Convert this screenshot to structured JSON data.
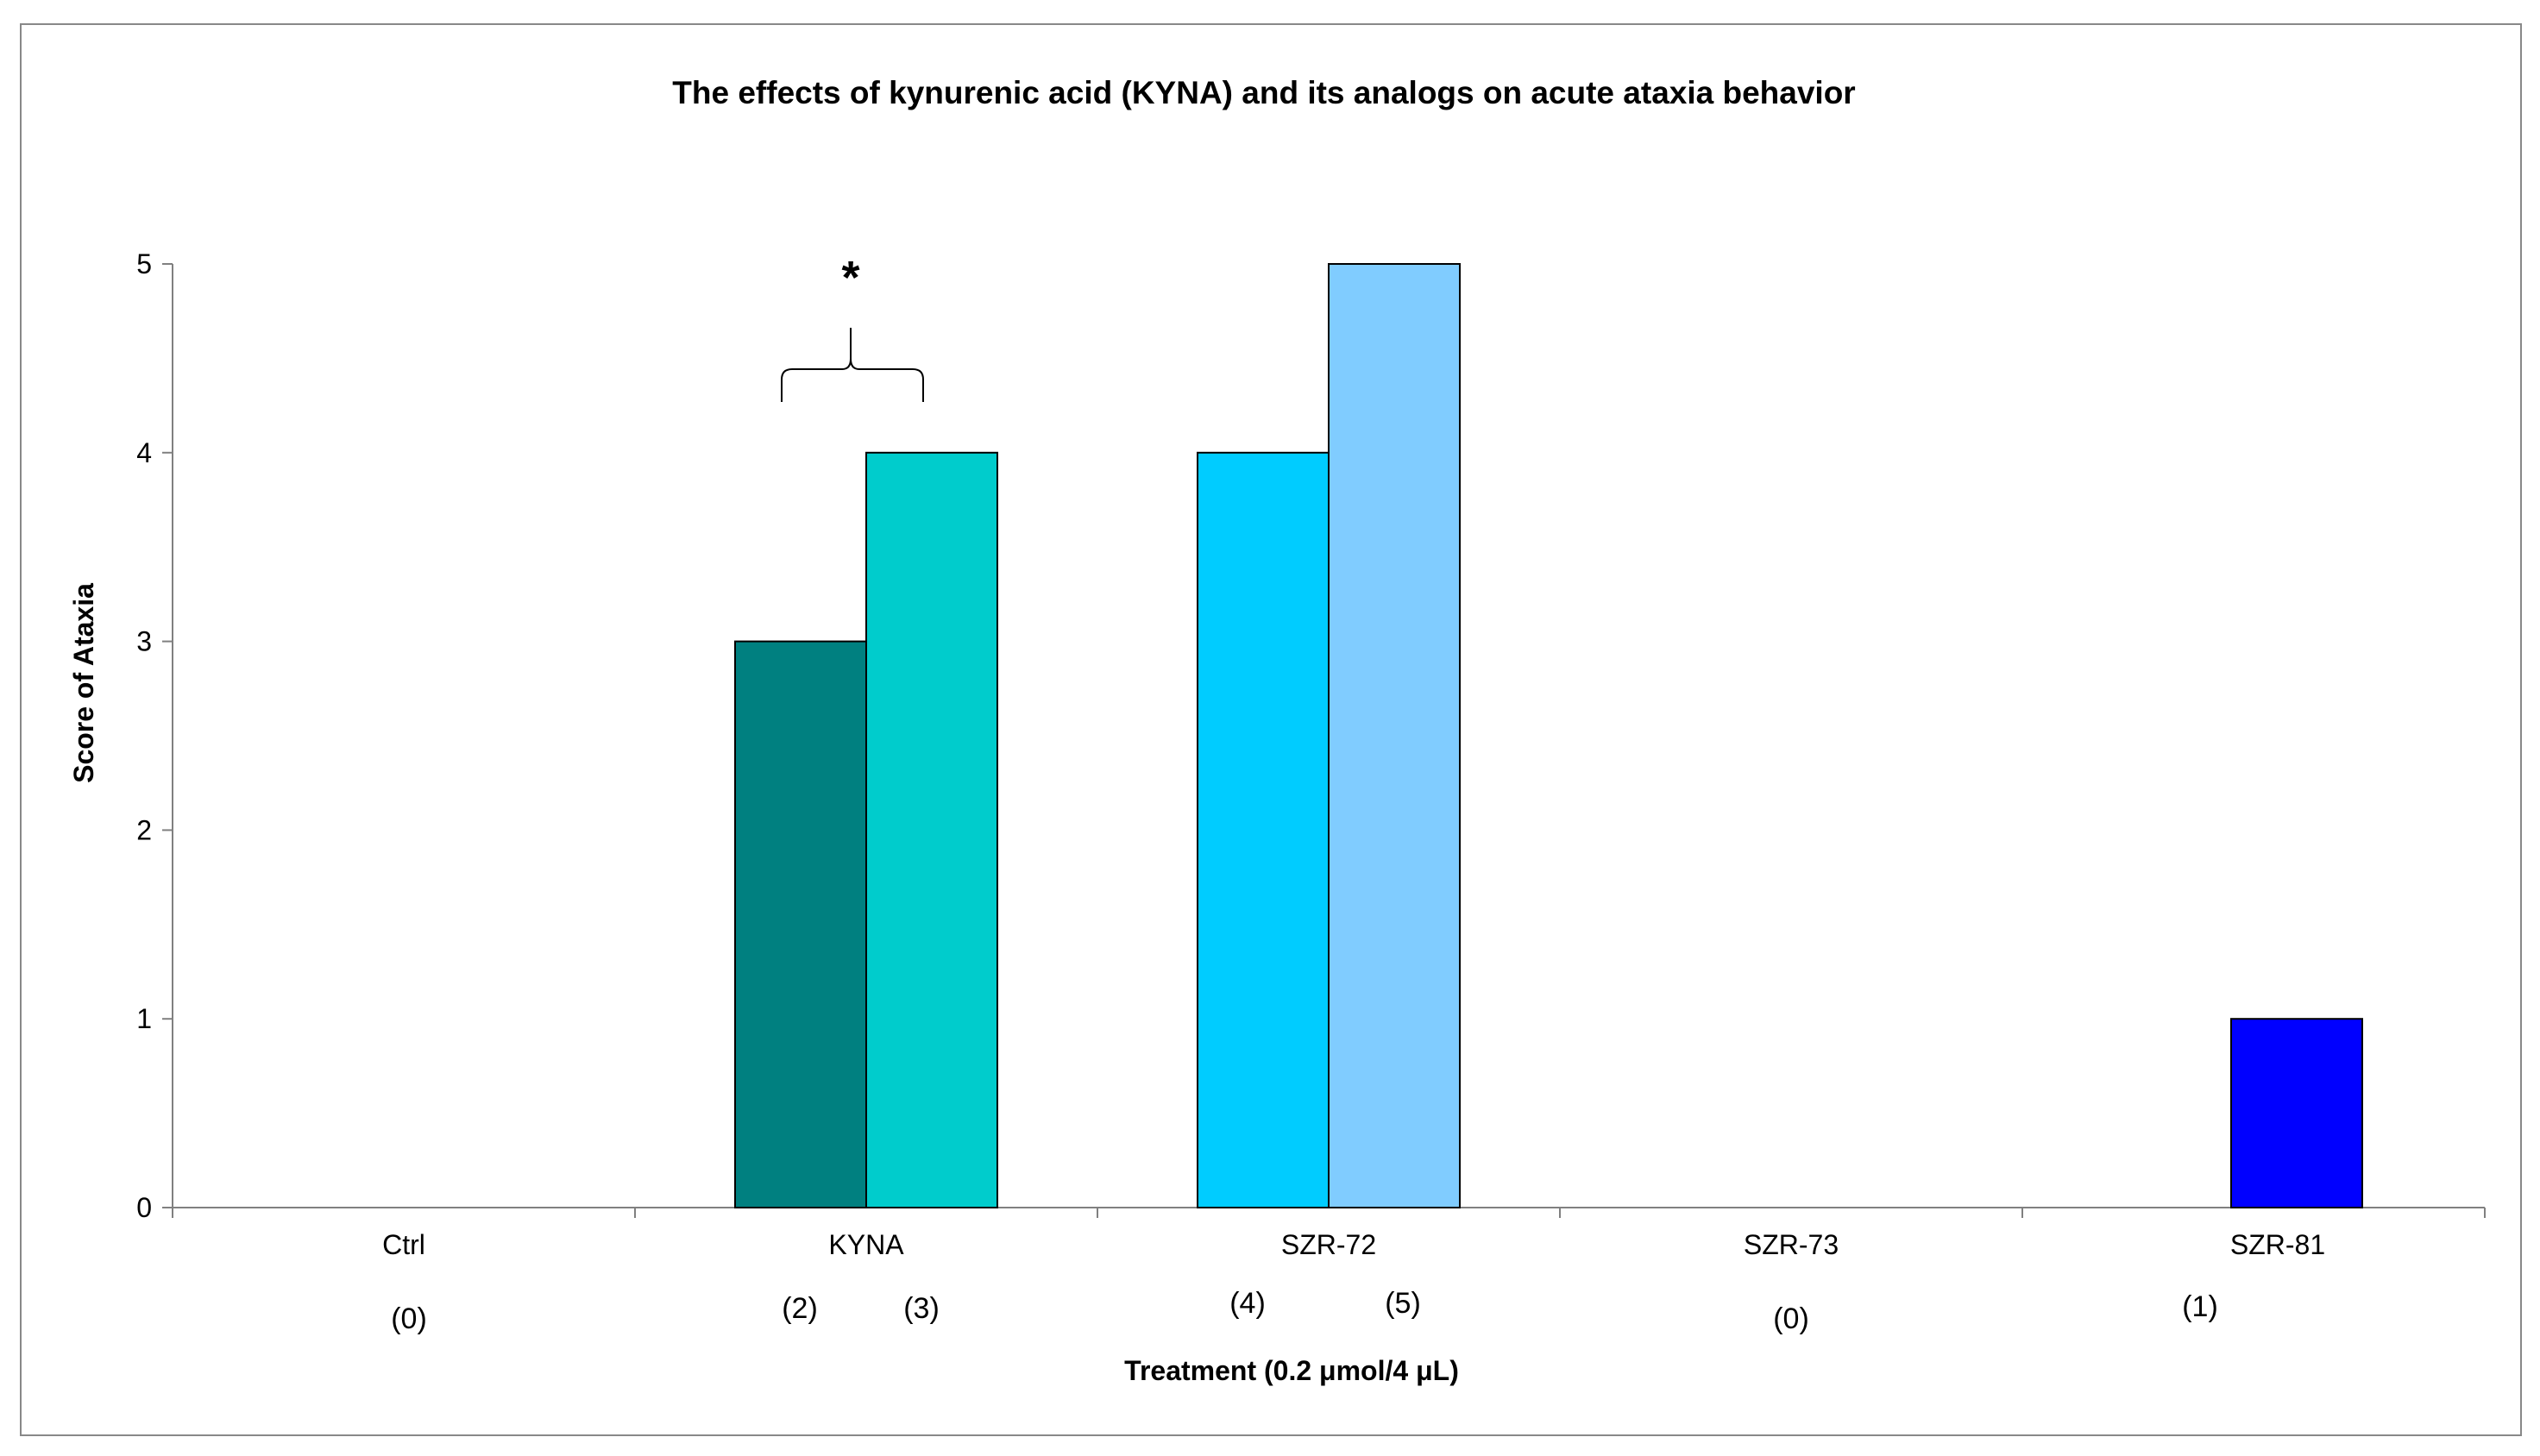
{
  "chart_data": {
    "type": "bar",
    "title": "The effects of kynurenic acid (KYNA) and its analogs on acute ataxia behavior",
    "xlabel": "Treatment (0.2 μmol/4 μL)",
    "ylabel": "Score of Ataxia",
    "ylim": [
      0,
      5
    ],
    "yticks": [
      "0",
      "1",
      "2",
      "3",
      "4",
      "5"
    ],
    "grid": false,
    "legend": "none",
    "categories": [
      "Ctrl",
      "KYNA",
      "SZR-72",
      "SZR-73",
      "SZR-81"
    ],
    "bars": [
      {
        "category": "Ctrl",
        "value": 0,
        "n_label": "(0)",
        "color": "#ffffff"
      },
      {
        "category": "KYNA",
        "value": 3,
        "n_label": "(2)",
        "color": "#008080"
      },
      {
        "category": "KYNA",
        "value": 4,
        "n_label": "(3)",
        "color": "#00cccc"
      },
      {
        "category": "SZR-72",
        "value": 4,
        "n_label": "(4)",
        "color": "#00ccff"
      },
      {
        "category": "SZR-72",
        "value": 5,
        "n_label": "(5)",
        "color": "#80ccff"
      },
      {
        "category": "SZR-73",
        "value": 0,
        "n_label": "(0)",
        "color": "#ffffff"
      },
      {
        "category": "SZR-81",
        "value": 1,
        "n_label": "(1)",
        "color": "#0000ff"
      }
    ],
    "annotations": [
      {
        "text": "*",
        "category": "KYNA",
        "meaning": "significance bracket over KYNA pair"
      }
    ]
  }
}
